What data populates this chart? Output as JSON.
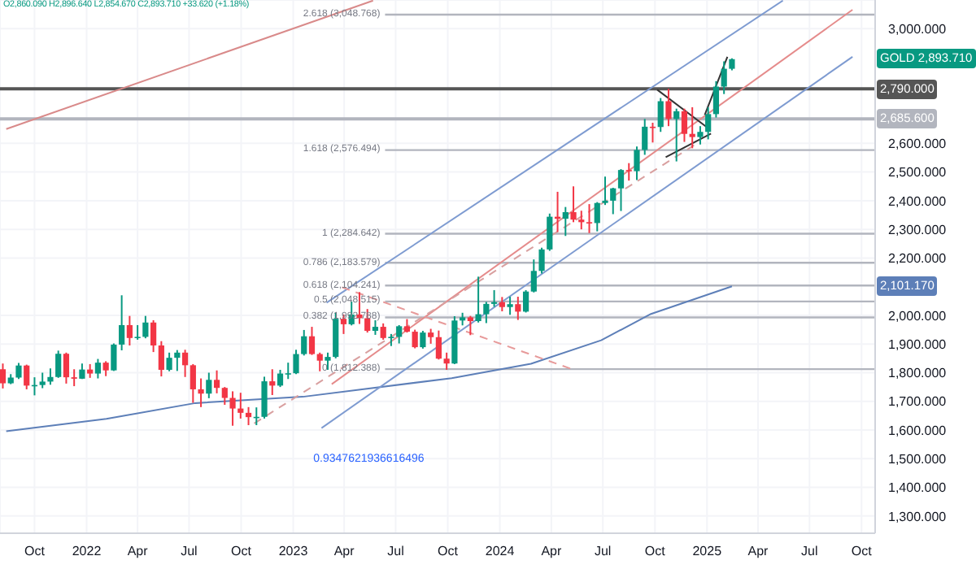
{
  "chart_data": {
    "type": "candlestick",
    "x": [
      "2021-08-06",
      "2021-08-20",
      "2021-09-03",
      "2021-09-17",
      "2021-10-01",
      "2021-10-15",
      "2021-10-29",
      "2021-11-12",
      "2021-11-26",
      "2021-12-10",
      "2021-12-24",
      "2022-01-07",
      "2022-01-21",
      "2022-02-04",
      "2022-02-18",
      "2022-03-04",
      "2022-03-18",
      "2022-04-01",
      "2022-04-15",
      "2022-04-29",
      "2022-05-13",
      "2022-05-27",
      "2022-06-10",
      "2022-06-24",
      "2022-07-08",
      "2022-07-22",
      "2022-08-05",
      "2022-08-19",
      "2022-09-02",
      "2022-09-16",
      "2022-09-30",
      "2022-10-14",
      "2022-10-28",
      "2022-11-11",
      "2022-11-25",
      "2022-12-09",
      "2022-12-23",
      "2023-01-06",
      "2023-01-20",
      "2023-02-03",
      "2023-02-17",
      "2023-03-03",
      "2023-03-17",
      "2023-03-31",
      "2023-04-14",
      "2023-04-28",
      "2023-05-12",
      "2023-05-26",
      "2023-06-09",
      "2023-06-23",
      "2023-07-07",
      "2023-07-21",
      "2023-08-04",
      "2023-08-18",
      "2023-09-01",
      "2023-09-15",
      "2023-09-29",
      "2023-10-13",
      "2023-10-27",
      "2023-11-10",
      "2023-11-24",
      "2023-12-08",
      "2023-12-22",
      "2024-01-05",
      "2024-01-19",
      "2024-02-02",
      "2024-02-16",
      "2024-03-01",
      "2024-03-15",
      "2024-03-29",
      "2024-04-12",
      "2024-04-26",
      "2024-05-10",
      "2024-05-24",
      "2024-06-07",
      "2024-06-21",
      "2024-07-05",
      "2024-07-19",
      "2024-08-02",
      "2024-08-16",
      "2024-08-30",
      "2024-09-13",
      "2024-09-27",
      "2024-10-11",
      "2024-10-25",
      "2024-11-08",
      "2024-11-22",
      "2024-12-06",
      "2024-12-20",
      "2025-01-03",
      "2025-01-17",
      "2025-01-31",
      "2025-02-14"
    ],
    "ohlc": [
      [
        1812,
        1832,
        1745,
        1763
      ],
      [
        1763,
        1795,
        1760,
        1783
      ],
      [
        1783,
        1834,
        1778,
        1825
      ],
      [
        1825,
        1828,
        1742,
        1755
      ],
      [
        1755,
        1784,
        1721,
        1757
      ],
      [
        1757,
        1800,
        1746,
        1769
      ],
      [
        1769,
        1815,
        1758,
        1785
      ],
      [
        1785,
        1877,
        1782,
        1866
      ],
      [
        1866,
        1870,
        1762,
        1784
      ],
      [
        1784,
        1812,
        1753,
        1779
      ],
      [
        1779,
        1832,
        1778,
        1811
      ],
      [
        1811,
        1830,
        1782,
        1797
      ],
      [
        1797,
        1848,
        1780,
        1835
      ],
      [
        1835,
        1840,
        1788,
        1808
      ],
      [
        1808,
        1902,
        1806,
        1898
      ],
      [
        1898,
        2070,
        1878,
        1966
      ],
      [
        1966,
        1998,
        1895,
        1921
      ],
      [
        1921,
        1966,
        1915,
        1925
      ],
      [
        1925,
        1998,
        1920,
        1975
      ],
      [
        1975,
        1983,
        1872,
        1895
      ],
      [
        1895,
        1910,
        1787,
        1810
      ],
      [
        1810,
        1870,
        1805,
        1852
      ],
      [
        1852,
        1879,
        1806,
        1870
      ],
      [
        1870,
        1880,
        1785,
        1826
      ],
      [
        1826,
        1830,
        1695,
        1742
      ],
      [
        1742,
        1780,
        1680,
        1727
      ],
      [
        1727,
        1800,
        1711,
        1775
      ],
      [
        1775,
        1808,
        1728,
        1747
      ],
      [
        1747,
        1750,
        1688,
        1712
      ],
      [
        1712,
        1735,
        1615,
        1675
      ],
      [
        1675,
        1730,
        1640,
        1660
      ],
      [
        1660,
        1680,
        1617,
        1645
      ],
      [
        1645,
        1679,
        1617,
        1646
      ],
      [
        1646,
        1786,
        1640,
        1770
      ],
      [
        1770,
        1812,
        1722,
        1755
      ],
      [
        1755,
        1810,
        1750,
        1797
      ],
      [
        1797,
        1835,
        1778,
        1798
      ],
      [
        1798,
        1880,
        1795,
        1865
      ],
      [
        1865,
        1949,
        1860,
        1927
      ],
      [
        1927,
        1960,
        1862,
        1865
      ],
      [
        1865,
        1870,
        1805,
        1842
      ],
      [
        1842,
        1870,
        1810,
        1855
      ],
      [
        1855,
        2009,
        1850,
        1988
      ],
      [
        1988,
        2003,
        1935,
        1969
      ],
      [
        1969,
        2048,
        1965,
        2003
      ],
      [
        2003,
        2081,
        1970,
        1990
      ],
      [
        1990,
        2022,
        1940,
        1946
      ],
      [
        1946,
        1983,
        1932,
        1960
      ],
      [
        1960,
        1972,
        1915,
        1921
      ],
      [
        1921,
        1935,
        1893,
        1925
      ],
      [
        1925,
        1966,
        1902,
        1962
      ],
      [
        1962,
        1987,
        1940,
        1943
      ],
      [
        1943,
        1950,
        1885,
        1889
      ],
      [
        1889,
        1946,
        1884,
        1940
      ],
      [
        1940,
        1953,
        1901,
        1924
      ],
      [
        1924,
        1947,
        1846,
        1849
      ],
      [
        1849,
        1870,
        1810,
        1832
      ],
      [
        1832,
        1997,
        1830,
        1982
      ],
      [
        1982,
        2009,
        1965,
        1993
      ],
      [
        1993,
        1998,
        1931,
        1980
      ],
      [
        1980,
        2135,
        1975,
        2004
      ],
      [
        2004,
        2047,
        1973,
        2040
      ],
      [
        2040,
        2088,
        2030,
        2046
      ],
      [
        2046,
        2064,
        2014,
        2029
      ],
      [
        2029,
        2065,
        2002,
        2039
      ],
      [
        2039,
        2065,
        1984,
        2013
      ],
      [
        2013,
        2088,
        2010,
        2083
      ],
      [
        2083,
        2195,
        2080,
        2155
      ],
      [
        2155,
        2236,
        2146,
        2230
      ],
      [
        2230,
        2355,
        2225,
        2344
      ],
      [
        2344,
        2431,
        2291,
        2337
      ],
      [
        2337,
        2378,
        2277,
        2360
      ],
      [
        2360,
        2450,
        2325,
        2334
      ],
      [
        2334,
        2365,
        2300,
        2325
      ],
      [
        2325,
        2388,
        2287,
        2322
      ],
      [
        2322,
        2395,
        2293,
        2392
      ],
      [
        2392,
        2484,
        2385,
        2400
      ],
      [
        2400,
        2445,
        2353,
        2443
      ],
      [
        2443,
        2510,
        2364,
        2507
      ],
      [
        2507,
        2531,
        2470,
        2503
      ],
      [
        2503,
        2589,
        2472,
        2577
      ],
      [
        2577,
        2685,
        2560,
        2658
      ],
      [
        2658,
        2672,
        2603,
        2657
      ],
      [
        2657,
        2758,
        2640,
        2747
      ],
      [
        2747,
        2790,
        2660,
        2685
      ],
      [
        2685,
        2721,
        2537,
        2712
      ],
      [
        2712,
        2721,
        2605,
        2633
      ],
      [
        2633,
        2726,
        2583,
        2622
      ],
      [
        2622,
        2660,
        2596,
        2640
      ],
      [
        2640,
        2726,
        2614,
        2702
      ],
      [
        2702,
        2817,
        2690,
        2798
      ],
      [
        2798,
        2886,
        2772,
        2860.09
      ],
      [
        2860.09,
        2896.64,
        2854.67,
        2893.71
      ]
    ],
    "colors": [
      "#f23645",
      "#089981",
      "#089981",
      "#f23645",
      "#089981",
      "#089981",
      "#089981",
      "#089981",
      "#f23645",
      "#f23645",
      "#089981",
      "#f23645",
      "#089981",
      "#f23645",
      "#089981",
      "#089981",
      "#f23645",
      "#089981",
      "#089981",
      "#f23645",
      "#f23645",
      "#089981",
      "#089981",
      "#f23645",
      "#f23645",
      "#f23645",
      "#089981",
      "#f23645",
      "#f23645",
      "#f23645",
      "#f23645",
      "#f23645",
      "#089981",
      "#089981",
      "#f23645",
      "#089981",
      "#089981",
      "#089981",
      "#089981",
      "#f23645",
      "#f23645",
      "#089981",
      "#089981",
      "#f23645",
      "#089981",
      "#f23645",
      "#f23645",
      "#089981",
      "#f23645",
      "#089981",
      "#089981",
      "#f23645",
      "#f23645",
      "#089981",
      "#f23645",
      "#f23645",
      "#f23645",
      "#089981",
      "#089981",
      "#f23645",
      "#089981",
      "#089981",
      "#089981",
      "#f23645",
      "#089981",
      "#f23645",
      "#089981",
      "#089981",
      "#089981",
      "#089981",
      "#f23645",
      "#089981",
      "#f23645",
      "#f23645",
      "#f23645",
      "#089981",
      "#089981",
      "#089981",
      "#089981",
      "#f23645",
      "#089981",
      "#089981",
      "#f23645",
      "#089981",
      "#f23645",
      "#089981",
      "#f23645",
      "#f23645",
      "#089981",
      "#089981",
      "#089981",
      "#089981",
      "#089981"
    ],
    "series": [
      {
        "type": "line",
        "color": "#5d7fb8",
        "x": [
          "2021-08-12",
          "2022-02-05",
          "2022-07-12",
          "2023-01-18",
          "2023-10-08",
          "2024-02-25",
          "2024-06-28",
          "2024-09-24",
          "2025-02-14"
        ],
        "values": [
          1596,
          1639,
          1694,
          1716,
          1781,
          1831,
          1913,
          2005,
          2101.17
        ]
      },
      {
        "type": "line",
        "color": "#7e9bd1",
        "x": [
          "2023-03-01",
          "2025-05-15"
        ],
        "values": [
          2044,
          3098
        ]
      },
      {
        "type": "line",
        "color": "#e58b8b",
        "x": [
          "2023-03-10",
          "2025-09-15"
        ],
        "values": [
          1760,
          3066
        ]
      },
      {
        "type": "line",
        "color": "#7e9bd1",
        "x": [
          "2023-02-20",
          "2025-09-15"
        ],
        "values": [
          1607,
          2902
        ]
      },
      {
        "type": "line",
        "color": "#d98a8a",
        "x": [
          "2021-08-12",
          "2023-05-22"
        ],
        "values": [
          2650,
          3098
        ]
      },
      {
        "type": "line",
        "color": "#333333",
        "x": [
          "2024-10-05",
          "2025-01-05"
        ],
        "values": [
          2787,
          2650
        ]
      },
      {
        "type": "line",
        "color": "#333333",
        "x": [
          "2024-10-20",
          "2025-01-08"
        ],
        "values": [
          2552,
          2634
        ]
      },
      {
        "type": "line",
        "color": "#333333",
        "x": [
          "2024-12-28",
          "2025-02-06"
        ],
        "values": [
          2699,
          2902
        ]
      },
      {
        "type": "line",
        "color": "#e79a9a",
        "line_style": "dashed",
        "x": [
          "2023-03-28",
          "2024-05-12"
        ],
        "values": [
          2098,
          1809
        ]
      },
      {
        "type": "line",
        "color": "#d9a0a0",
        "line_style": "dashed",
        "x": [
          "2022-10-24",
          "2024-12-20"
        ],
        "values": [
          1623,
          2607
        ]
      }
    ],
    "ref_lines": [
      {
        "axis": "y",
        "value": 2790,
        "color": "#555555"
      },
      {
        "axis": "y",
        "value": 2685.6,
        "color": "#b2b5be"
      },
      {
        "axis": "y",
        "value": 3048.768,
        "label": "2.618 (3,048.768)",
        "color": "#b2b5be"
      },
      {
        "axis": "y",
        "value": 2576.494,
        "label": "1.618 (2,576.494)",
        "color": "#b2b5be"
      },
      {
        "axis": "y",
        "value": 2284.642,
        "label": "1 (2,284.642)",
        "color": "#b2b5be"
      },
      {
        "axis": "y",
        "value": 2183.579,
        "label": "0.786 (2,183.579)",
        "color": "#b2b5be"
      },
      {
        "axis": "y",
        "value": 2104.241,
        "label": "0.618 (2,104.241)",
        "color": "#b2b5be"
      },
      {
        "axis": "y",
        "value": 2048.515,
        "label": "0.5 (2,048.515)",
        "color": "#b2b5be"
      },
      {
        "axis": "y",
        "value": 1992.788,
        "label": "0.382 (1,992.788)",
        "color": "#b2b5be"
      },
      {
        "axis": "y",
        "value": 1812.388,
        "label": "0 (1,812.388)",
        "color": "#b2b5be"
      }
    ],
    "annotations": [
      "O2,860.090 H2,896.640 L2,854.670 C2,893.710 +33.620 (+1.18%)",
      "GOLD 2,893.710",
      {
        "text": "2,790.000",
        "y": 2790
      },
      {
        "text": "2,685.600",
        "y": 2685.6
      },
      {
        "text": "2,101.170",
        "y": 2101.17
      },
      {
        "text": "0.9347621936616496",
        "x": "2023-02-20",
        "y": 1607
      }
    ],
    "xlim": [
      "2021-08-01",
      "2025-10-25"
    ],
    "xticks": [
      {
        "value": "2021-10-01",
        "label": "Oct"
      },
      {
        "value": "2022-01-01",
        "label": "2022"
      },
      {
        "value": "2022-04-01",
        "label": "Apr"
      },
      {
        "value": "2022-07-01",
        "label": "Jul"
      },
      {
        "value": "2022-10-01",
        "label": "Oct"
      },
      {
        "value": "2023-01-01",
        "label": "2023"
      },
      {
        "value": "2023-04-01",
        "label": "Apr"
      },
      {
        "value": "2023-07-01",
        "label": "Jul"
      },
      {
        "value": "2023-10-01",
        "label": "Oct"
      },
      {
        "value": "2024-01-01",
        "label": "2024"
      },
      {
        "value": "2024-04-01",
        "label": "Apr"
      },
      {
        "value": "2024-07-01",
        "label": "Jul"
      },
      {
        "value": "2024-10-01",
        "label": "Oct"
      },
      {
        "value": "2025-01-01",
        "label": "2025"
      },
      {
        "value": "2025-04-01",
        "label": "Apr"
      },
      {
        "value": "2025-07-01",
        "label": "Jul"
      },
      {
        "value": "2025-10-01",
        "label": "Oct"
      }
    ],
    "ylim": [
      1240,
      3100
    ],
    "yticks": [
      {
        "value": 1300,
        "label": "1,300.000"
      },
      {
        "value": 1400,
        "label": "1,400.000"
      },
      {
        "value": 1500,
        "label": "1,500.000"
      },
      {
        "value": 1600,
        "label": "1,600.000"
      },
      {
        "value": 1700,
        "label": "1,700.000"
      },
      {
        "value": 1800,
        "label": "1,800.000"
      },
      {
        "value": 1900,
        "label": "1,900.000"
      },
      {
        "value": 2000,
        "label": "2,000.000"
      },
      {
        "value": 2200,
        "label": "2,200.000"
      },
      {
        "value": 2300,
        "label": "2,300.000"
      },
      {
        "value": 2400,
        "label": "2,400.000"
      },
      {
        "value": 2500,
        "label": "2,500.000"
      },
      {
        "value": 2600,
        "label": "2,600.000"
      },
      {
        "value": 3000,
        "label": "3,000.000"
      }
    ],
    "grid": true,
    "legend": false,
    "marker": "none"
  }
}
